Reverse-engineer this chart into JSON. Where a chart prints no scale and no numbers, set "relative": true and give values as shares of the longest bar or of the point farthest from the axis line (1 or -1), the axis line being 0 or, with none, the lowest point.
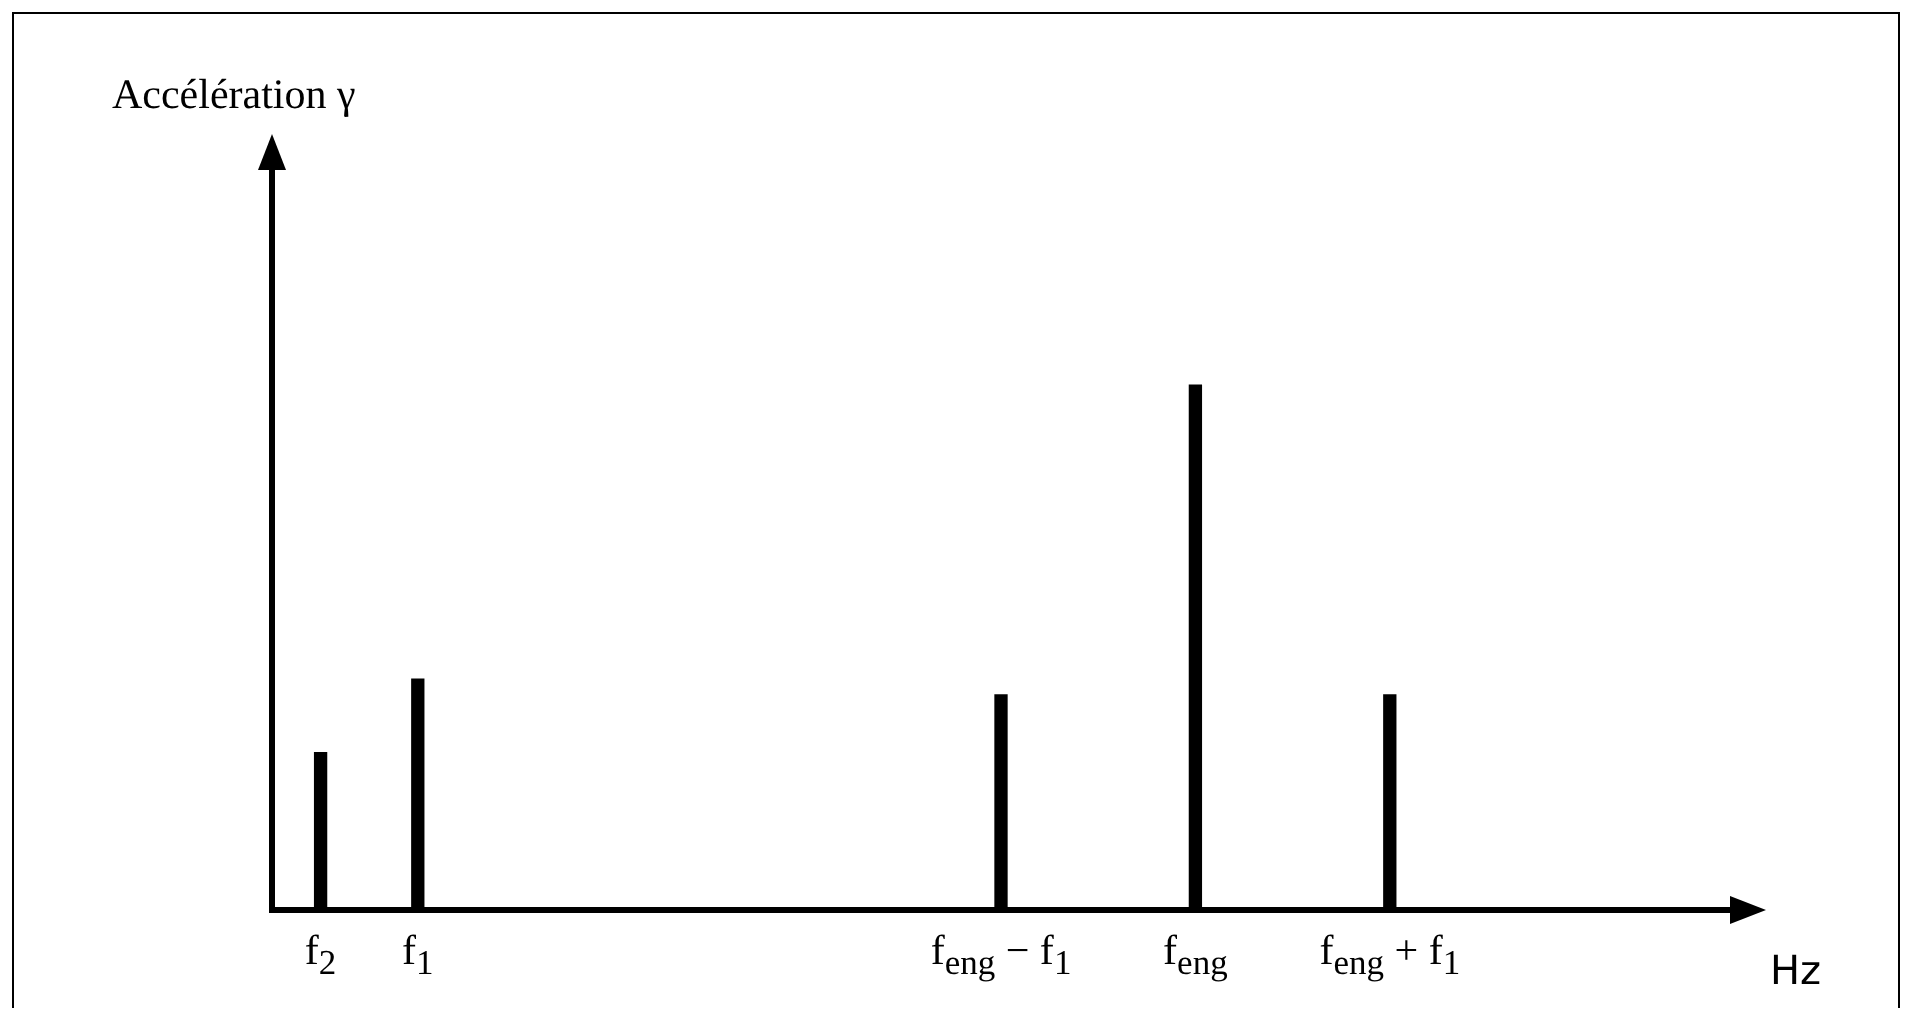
{
  "chart_data": {
    "type": "bar",
    "relative": true,
    "xlabel": "Hz",
    "annotations": [
      "Accélération γ"
    ],
    "categories": [
      "f$_{2}$",
      "f$_{1}$",
      null,
      null,
      null,
      null,
      null,
      "f$_{eng}$ − f$_{1}$",
      null,
      "f$_{eng}$",
      null,
      "f$_{eng}$ + f$_{1}$",
      null,
      null,
      null
    ],
    "values": [
      0.3,
      0.44,
      null,
      null,
      null,
      null,
      null,
      0.41,
      null,
      1,
      null,
      0.41,
      null,
      null,
      null
    ],
    "color": "#000000",
    "grid": false,
    "legend": false
  }
}
